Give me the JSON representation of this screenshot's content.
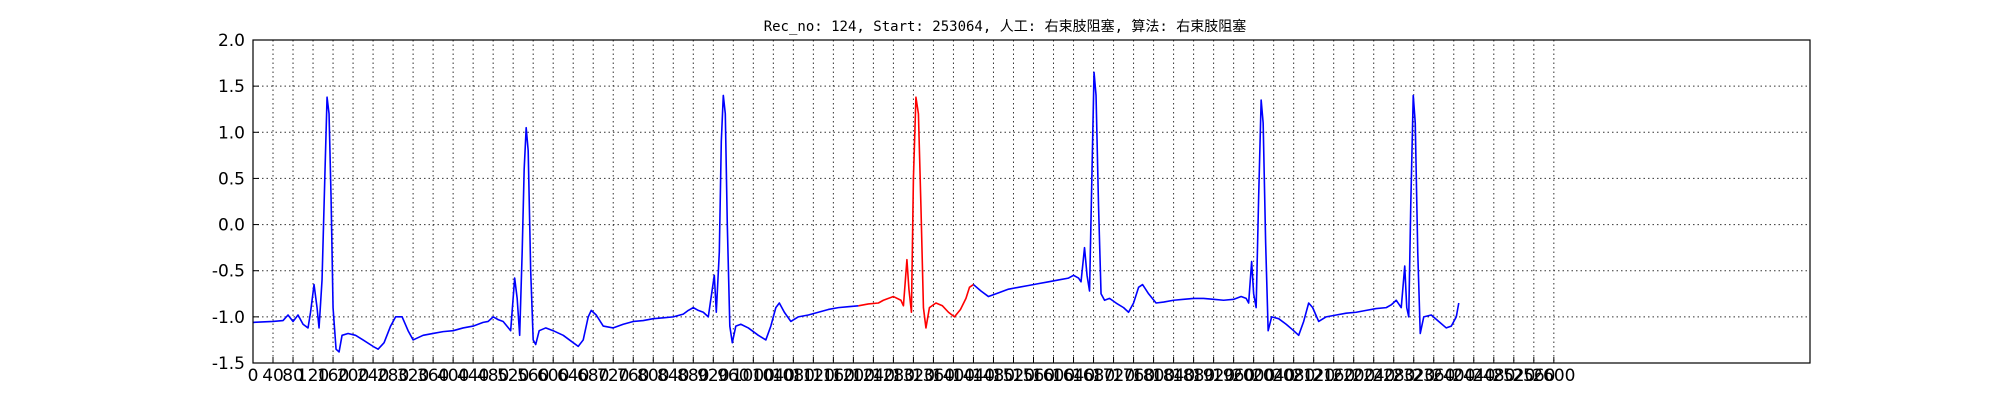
{
  "chart_data": {
    "type": "line",
    "title": "Rec_no: 124, Start: 253064, 人工: 右束肢阻塞, 算法: 右束肢阻塞",
    "xlabel": "",
    "ylabel": "",
    "xlim": [
      0,
      3112
    ],
    "ylim": [
      -1.5,
      2.0
    ],
    "grid": true,
    "yticks": [
      "-1.5",
      "-1.0",
      "-0.5",
      "0.0",
      "0.5",
      "1.0",
      "1.5",
      "2.0"
    ],
    "xticks": [
      {
        "x": 0,
        "label": "0"
      },
      {
        "x": 40,
        "label": "40"
      },
      {
        "x": 80,
        "label": "80"
      },
      {
        "x": 120,
        "label": "120"
      },
      {
        "x": 160,
        "label": "160"
      },
      {
        "x": 200,
        "label": "200"
      },
      {
        "x": 240,
        "label": "240"
      },
      {
        "x": 280,
        "label": "280"
      },
      {
        "x": 320,
        "label": "320"
      },
      {
        "x": 360,
        "label": "360"
      },
      {
        "x": 400,
        "label": "400"
      },
      {
        "x": 440,
        "label": "440"
      },
      {
        "x": 480,
        "label": "480"
      },
      {
        "x": 520,
        "label": "520"
      },
      {
        "x": 560,
        "label": "560"
      },
      {
        "x": 600,
        "label": "600"
      },
      {
        "x": 640,
        "label": "640"
      },
      {
        "x": 680,
        "label": "680"
      },
      {
        "x": 720,
        "label": "720"
      },
      {
        "x": 760,
        "label": "760"
      },
      {
        "x": 800,
        "label": "800"
      },
      {
        "x": 840,
        "label": "840"
      },
      {
        "x": 880,
        "label": "880"
      },
      {
        "x": 920,
        "label": "920"
      },
      {
        "x": 960,
        "label": "960"
      },
      {
        "x": 1000,
        "label": "1000"
      },
      {
        "x": 1040,
        "label": "1040"
      },
      {
        "x": 1080,
        "label": "1080"
      },
      {
        "x": 1120,
        "label": "1120"
      },
      {
        "x": 1160,
        "label": "1160"
      },
      {
        "x": 1200,
        "label": "1200"
      },
      {
        "x": 1240,
        "label": "1240"
      },
      {
        "x": 1280,
        "label": "1280"
      },
      {
        "x": 1320,
        "label": "1320"
      },
      {
        "x": 1360,
        "label": "1360"
      },
      {
        "x": 1400,
        "label": "1400"
      },
      {
        "x": 1440,
        "label": "1440"
      },
      {
        "x": 1480,
        "label": "1480"
      },
      {
        "x": 1520,
        "label": "1520"
      },
      {
        "x": 1560,
        "label": "1560"
      },
      {
        "x": 1600,
        "label": "1600"
      },
      {
        "x": 1640,
        "label": "1640"
      },
      {
        "x": 1680,
        "label": "1680"
      },
      {
        "x": 1720,
        "label": "1720"
      },
      {
        "x": 1760,
        "label": "1760"
      },
      {
        "x": 1800,
        "label": "1800"
      },
      {
        "x": 1840,
        "label": "1840"
      },
      {
        "x": 1880,
        "label": "1880"
      },
      {
        "x": 1920,
        "label": "1920"
      },
      {
        "x": 1960,
        "label": "1960"
      },
      {
        "x": 2000,
        "label": "2000"
      },
      {
        "x": 2040,
        "label": "2040"
      },
      {
        "x": 2080,
        "label": "2080"
      },
      {
        "x": 2120,
        "label": "2120"
      },
      {
        "x": 2160,
        "label": "2160"
      },
      {
        "x": 2200,
        "label": "2200"
      },
      {
        "x": 2240,
        "label": "2240"
      },
      {
        "x": 2280,
        "label": "2280"
      },
      {
        "x": 2320,
        "label": "2320"
      },
      {
        "x": 2360,
        "label": "2360"
      },
      {
        "x": 2400,
        "label": "2400"
      },
      {
        "x": 2440,
        "label": "2440"
      },
      {
        "x": 2480,
        "label": "2480"
      },
      {
        "x": 2520,
        "label": "2520"
      },
      {
        "x": 2560,
        "label": "2560"
      },
      {
        "x": 2600,
        "label": "2600"
      }
    ],
    "series": [
      {
        "color": "#0000ff",
        "points": [
          [
            0,
            -1.06
          ],
          [
            40,
            -1.05
          ],
          [
            60,
            -1.04
          ],
          [
            70,
            -0.98
          ],
          [
            80,
            -1.05
          ],
          [
            90,
            -0.98
          ],
          [
            100,
            -1.08
          ],
          [
            110,
            -1.12
          ],
          [
            115,
            -0.95
          ],
          [
            122,
            -0.65
          ],
          [
            128,
            -0.9
          ],
          [
            132,
            -1.12
          ],
          [
            138,
            -0.6
          ],
          [
            144,
            0.6
          ],
          [
            148,
            1.38
          ],
          [
            152,
            1.2
          ],
          [
            156,
            0.3
          ],
          [
            160,
            -0.9
          ],
          [
            166,
            -1.35
          ],
          [
            172,
            -1.38
          ],
          [
            178,
            -1.2
          ],
          [
            190,
            -1.18
          ],
          [
            205,
            -1.2
          ],
          [
            220,
            -1.25
          ],
          [
            240,
            -1.32
          ],
          [
            250,
            -1.35
          ],
          [
            262,
            -1.28
          ],
          [
            275,
            -1.1
          ],
          [
            285,
            -1.0
          ],
          [
            298,
            -1.0
          ],
          [
            310,
            -1.15
          ],
          [
            320,
            -1.25
          ],
          [
            340,
            -1.2
          ],
          [
            360,
            -1.18
          ],
          [
            380,
            -1.16
          ],
          [
            400,
            -1.15
          ],
          [
            420,
            -1.12
          ],
          [
            440,
            -1.1
          ],
          [
            460,
            -1.06
          ],
          [
            470,
            -1.05
          ],
          [
            480,
            -1.0
          ],
          [
            490,
            -1.03
          ],
          [
            500,
            -1.05
          ],
          [
            515,
            -1.15
          ],
          [
            523,
            -0.58
          ],
          [
            528,
            -0.8
          ],
          [
            533,
            -1.2
          ],
          [
            538,
            -0.3
          ],
          [
            542,
            0.6
          ],
          [
            546,
            1.05
          ],
          [
            550,
            0.8
          ],
          [
            555,
            -0.5
          ],
          [
            560,
            -1.25
          ],
          [
            565,
            -1.3
          ],
          [
            572,
            -1.15
          ],
          [
            585,
            -1.12
          ],
          [
            600,
            -1.15
          ],
          [
            620,
            -1.2
          ],
          [
            640,
            -1.28
          ],
          [
            650,
            -1.32
          ],
          [
            660,
            -1.25
          ],
          [
            670,
            -1.0
          ],
          [
            676,
            -0.93
          ],
          [
            686,
            -0.98
          ],
          [
            700,
            -1.1
          ],
          [
            720,
            -1.12
          ],
          [
            740,
            -1.08
          ],
          [
            760,
            -1.05
          ],
          [
            780,
            -1.04
          ],
          [
            800,
            -1.02
          ],
          [
            820,
            -1.01
          ],
          [
            840,
            -1.0
          ],
          [
            860,
            -0.97
          ],
          [
            870,
            -0.93
          ],
          [
            880,
            -0.9
          ],
          [
            890,
            -0.93
          ],
          [
            900,
            -0.95
          ],
          [
            910,
            -1.0
          ],
          [
            918,
            -0.7
          ],
          [
            922,
            -0.55
          ],
          [
            926,
            -0.95
          ],
          [
            932,
            -0.3
          ],
          [
            936,
            0.9
          ],
          [
            940,
            1.4
          ],
          [
            944,
            1.2
          ],
          [
            948,
            0.0
          ],
          [
            953,
            -1.1
          ],
          [
            958,
            -1.28
          ],
          [
            965,
            -1.1
          ],
          [
            975,
            -1.08
          ],
          [
            990,
            -1.12
          ],
          [
            1010,
            -1.2
          ],
          [
            1025,
            -1.25
          ],
          [
            1035,
            -1.1
          ],
          [
            1045,
            -0.9
          ],
          [
            1052,
            -0.85
          ],
          [
            1062,
            -0.95
          ],
          [
            1075,
            -1.05
          ],
          [
            1090,
            -1.0
          ],
          [
            1110,
            -0.98
          ],
          [
            1130,
            -0.95
          ],
          [
            1150,
            -0.92
          ],
          [
            1170,
            -0.9
          ],
          [
            1190,
            -0.89
          ],
          [
            1210,
            -0.88
          ]
        ]
      },
      {
        "color": "#ff0000",
        "points": [
          [
            1210,
            -0.88
          ],
          [
            1230,
            -0.86
          ],
          [
            1250,
            -0.85
          ],
          [
            1260,
            -0.82
          ],
          [
            1270,
            -0.8
          ],
          [
            1280,
            -0.78
          ],
          [
            1295,
            -0.82
          ],
          [
            1300,
            -0.88
          ],
          [
            1307,
            -0.38
          ],
          [
            1311,
            -0.7
          ],
          [
            1316,
            -0.95
          ],
          [
            1320,
            0.5
          ],
          [
            1325,
            1.38
          ],
          [
            1330,
            1.2
          ],
          [
            1335,
            0.2
          ],
          [
            1340,
            -0.9
          ],
          [
            1345,
            -1.12
          ],
          [
            1352,
            -0.9
          ],
          [
            1365,
            -0.85
          ],
          [
            1378,
            -0.88
          ],
          [
            1390,
            -0.95
          ],
          [
            1402,
            -1.0
          ],
          [
            1414,
            -0.92
          ],
          [
            1425,
            -0.8
          ],
          [
            1432,
            -0.68
          ],
          [
            1440,
            -0.65
          ]
        ]
      },
      {
        "color": "#0000ff",
        "points": [
          [
            1440,
            -0.65
          ],
          [
            1455,
            -0.72
          ],
          [
            1470,
            -0.78
          ],
          [
            1490,
            -0.74
          ],
          [
            1510,
            -0.7
          ],
          [
            1530,
            -0.68
          ],
          [
            1550,
            -0.66
          ],
          [
            1570,
            -0.64
          ],
          [
            1590,
            -0.62
          ],
          [
            1610,
            -0.6
          ],
          [
            1630,
            -0.58
          ],
          [
            1640,
            -0.55
          ],
          [
            1650,
            -0.58
          ],
          [
            1655,
            -0.62
          ],
          [
            1662,
            -0.25
          ],
          [
            1667,
            -0.55
          ],
          [
            1672,
            -0.72
          ],
          [
            1677,
            0.6
          ],
          [
            1681,
            1.65
          ],
          [
            1685,
            1.4
          ],
          [
            1690,
            0.2
          ],
          [
            1695,
            -0.75
          ],
          [
            1702,
            -0.82
          ],
          [
            1712,
            -0.8
          ],
          [
            1725,
            -0.85
          ],
          [
            1740,
            -0.9
          ],
          [
            1750,
            -0.95
          ],
          [
            1760,
            -0.85
          ],
          [
            1770,
            -0.68
          ],
          [
            1778,
            -0.65
          ],
          [
            1790,
            -0.75
          ],
          [
            1805,
            -0.85
          ],
          [
            1820,
            -0.84
          ],
          [
            1840,
            -0.82
          ],
          [
            1860,
            -0.81
          ],
          [
            1880,
            -0.8
          ],
          [
            1900,
            -0.8
          ],
          [
            1920,
            -0.81
          ],
          [
            1940,
            -0.82
          ],
          [
            1960,
            -0.81
          ],
          [
            1975,
            -0.78
          ],
          [
            1985,
            -0.8
          ],
          [
            1990,
            -0.85
          ],
          [
            1996,
            -0.4
          ],
          [
            2000,
            -0.75
          ],
          [
            2005,
            -0.9
          ],
          [
            2010,
            0.3
          ],
          [
            2015,
            1.35
          ],
          [
            2019,
            1.1
          ],
          [
            2024,
            -0.2
          ],
          [
            2029,
            -1.15
          ],
          [
            2036,
            -1.0
          ],
          [
            2050,
            -1.02
          ],
          [
            2065,
            -1.08
          ],
          [
            2080,
            -1.15
          ],
          [
            2090,
            -1.2
          ],
          [
            2100,
            -1.05
          ],
          [
            2110,
            -0.85
          ],
          [
            2118,
            -0.9
          ],
          [
            2130,
            -1.05
          ],
          [
            2145,
            -1.0
          ],
          [
            2165,
            -0.98
          ],
          [
            2185,
            -0.96
          ],
          [
            2205,
            -0.95
          ],
          [
            2225,
            -0.93
          ],
          [
            2245,
            -0.91
          ],
          [
            2265,
            -0.9
          ],
          [
            2275,
            -0.87
          ],
          [
            2285,
            -0.82
          ],
          [
            2295,
            -0.9
          ],
          [
            2302,
            -0.45
          ],
          [
            2306,
            -0.9
          ],
          [
            2310,
            -1.0
          ],
          [
            2314,
            0.2
          ],
          [
            2319,
            1.4
          ],
          [
            2323,
            1.1
          ],
          [
            2328,
            -0.3
          ],
          [
            2333,
            -1.18
          ],
          [
            2340,
            -1.0
          ],
          [
            2355,
            -0.98
          ],
          [
            2370,
            -1.05
          ],
          [
            2385,
            -1.12
          ],
          [
            2395,
            -1.1
          ],
          [
            2405,
            -1.0
          ],
          [
            2410,
            -0.85
          ]
        ]
      }
    ]
  }
}
